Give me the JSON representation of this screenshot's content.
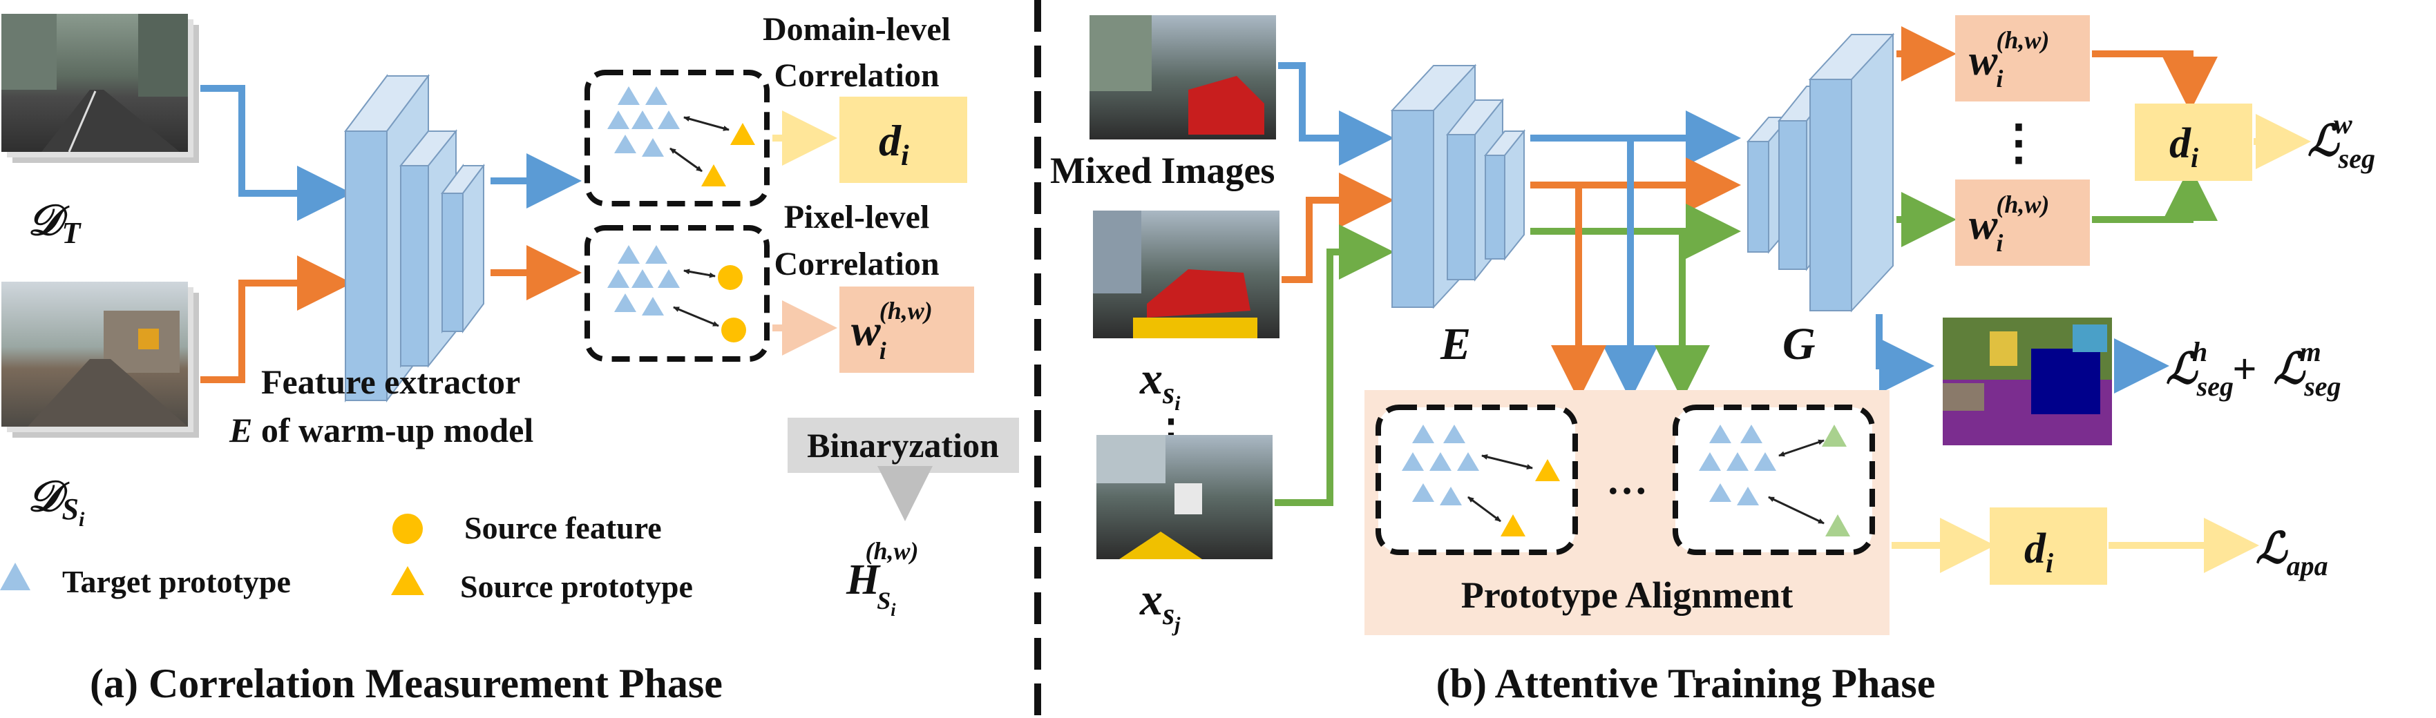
{
  "part_a": {
    "caption": "(a) Correlation Measurement Phase",
    "target_domain": {
      "base": "𝒟",
      "sub": "T"
    },
    "source_domain": {
      "base": "𝒟",
      "sub": "S",
      "subsub": "i"
    },
    "extractor_line1": "Feature extractor",
    "extractor_line2_var": "E",
    "extractor_line2_rest": " of warm-up model",
    "domain_corr_line1": "Domain-level",
    "domain_corr_line2": "Correlation",
    "pixel_corr_line1": "Pixel-level",
    "pixel_corr_line2": "Correlation",
    "d_var": "d",
    "d_sub": "i",
    "w_var": "w",
    "w_sub": "i",
    "w_sup": "(h,w)",
    "binaryzation": "Binaryzation",
    "h_var": "H",
    "h_sub": "S",
    "h_subsub": "i",
    "h_sup": "(h,w)",
    "legend": {
      "source_feature": "Source feature",
      "target_prototype": "Target prototype",
      "source_prototype": "Source prototype"
    }
  },
  "part_b": {
    "caption": "(b) Attentive Training Phase",
    "mixed_images": "Mixed Images",
    "xsi": {
      "base": "x",
      "sub": "s",
      "subsub": "i"
    },
    "xsj": {
      "base": "x",
      "sub": "s",
      "subsub": "j"
    },
    "encoder": "E",
    "decoder": "G",
    "dots": "…",
    "w_top": {
      "var": "w",
      "sub": "i",
      "sup": "(h,w)"
    },
    "w_bottom": {
      "var": "w",
      "sub": "i",
      "sup": "(h,w)"
    },
    "d_top": {
      "var": "d",
      "sub": "i"
    },
    "d_bottom": {
      "var": "d",
      "sub": "i"
    },
    "proto_alignment": "Prototype Alignment",
    "loss_w": {
      "base": "ℒ",
      "sub": "seg",
      "sup": "w"
    },
    "loss_h": {
      "base": "ℒ",
      "sub": "seg",
      "sup": "h"
    },
    "plus": "+",
    "loss_m": {
      "base": "ℒ",
      "sub": "seg",
      "sup": "m"
    },
    "loss_apa": {
      "base": "ℒ",
      "sub": "apa"
    }
  },
  "colors": {
    "blue_arrow": "#5b9bd5",
    "orange_arrow": "#ed7d31",
    "green_arrow": "#70ad47",
    "yellow_arrow": "#ffe699",
    "pink_arrow": "#f8cbad",
    "d_box": "#ffe699",
    "w_box": "#f8cbad",
    "proto_bg": "#fbe5d6",
    "binary_box": "#d9d9d9",
    "network_block": "#9dc3e6",
    "triangle_blue": "#9dc3e6",
    "triangle_yellow": "#ffc000",
    "triangle_green": "#a9d18e"
  }
}
